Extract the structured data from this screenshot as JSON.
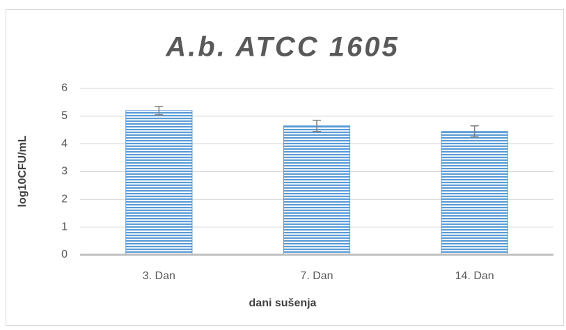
{
  "chart_data": {
    "type": "bar",
    "title": "A.b. ATCC 1605",
    "categories": [
      "3. Dan",
      "7. Dan",
      "14. Dan"
    ],
    "values": [
      5.2,
      4.65,
      4.45
    ],
    "errors": [
      0.15,
      0.2,
      0.2
    ],
    "color": "#5b9bd5",
    "xlabel": "dani sušenja",
    "ylabel": "log10CFU/mL",
    "ylim": [
      0,
      6
    ],
    "yticks": [
      0,
      1,
      2,
      3,
      4,
      5,
      6
    ],
    "grid": true
  }
}
